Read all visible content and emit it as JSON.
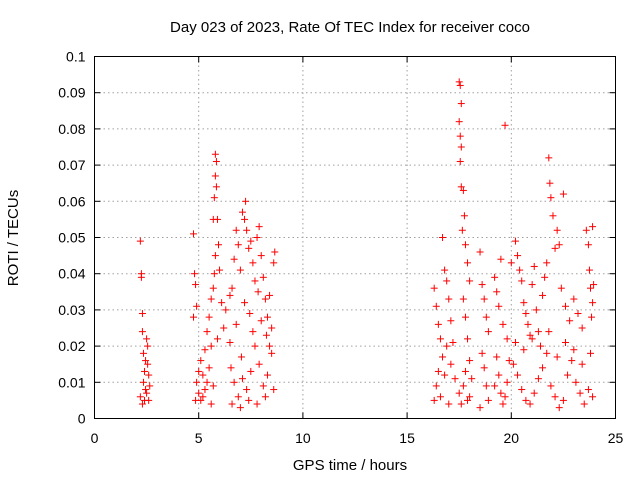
{
  "chart_data": {
    "type": "scatter",
    "title": "Day 023 of 2023, Rate Of TEC Index for receiver coco",
    "xlabel": "GPS time / hours",
    "ylabel": "ROTI / TECUs",
    "xlim": [
      0,
      25
    ],
    "ylim": [
      0,
      0.1
    ],
    "x_ticks": [
      "0",
      "5",
      "10",
      "15",
      "20",
      "25"
    ],
    "y_ticks": [
      "0",
      "0.01",
      "0.02",
      "0.03",
      "0.04",
      "0.05",
      "0.06",
      "0.07",
      "0.08",
      "0.09",
      "0.1"
    ],
    "grid": true,
    "marker": "+",
    "color": "#ff0000",
    "series": [
      {
        "points": [
          [
            2.2,
            0.049
          ],
          [
            2.25,
            0.04
          ],
          [
            2.3,
            0.029
          ],
          [
            2.3,
            0.024
          ],
          [
            2.35,
            0.018
          ],
          [
            2.4,
            0.013
          ],
          [
            2.45,
            0.016
          ],
          [
            2.5,
            0.022
          ],
          [
            2.55,
            0.02
          ],
          [
            2.6,
            0.012
          ],
          [
            2.65,
            0.009
          ],
          [
            2.2,
            0.006
          ],
          [
            2.3,
            0.004
          ],
          [
            2.4,
            0.005
          ],
          [
            2.5,
            0.007
          ],
          [
            2.6,
            0.005
          ],
          [
            2.25,
            0.039
          ],
          [
            2.35,
            0.01
          ],
          [
            2.45,
            0.008
          ],
          [
            2.55,
            0.015
          ],
          [
            4.75,
            0.051
          ],
          [
            4.8,
            0.04
          ],
          [
            4.85,
            0.037
          ],
          [
            4.75,
            0.028
          ],
          [
            4.9,
            0.031
          ],
          [
            5.0,
            0.013
          ],
          [
            5.1,
            0.016
          ],
          [
            5.2,
            0.012
          ],
          [
            5.3,
            0.019
          ],
          [
            5.4,
            0.024
          ],
          [
            5.5,
            0.028
          ],
          [
            5.6,
            0.033
          ],
          [
            5.7,
            0.036
          ],
          [
            5.75,
            0.04
          ],
          [
            5.8,
            0.045
          ],
          [
            5.7,
            0.055
          ],
          [
            5.75,
            0.061
          ],
          [
            5.85,
            0.064
          ],
          [
            5.8,
            0.067
          ],
          [
            5.8,
            0.073
          ],
          [
            5.85,
            0.071
          ],
          [
            5.9,
            0.055
          ],
          [
            5.95,
            0.048
          ],
          [
            6.0,
            0.041
          ],
          [
            6.1,
            0.032
          ],
          [
            5.9,
            0.022
          ],
          [
            5.6,
            0.02
          ],
          [
            5.5,
            0.014
          ],
          [
            5.4,
            0.01
          ],
          [
            5.3,
            0.008
          ],
          [
            5.2,
            0.006
          ],
          [
            5.1,
            0.005
          ],
          [
            5.0,
            0.007
          ],
          [
            4.9,
            0.01
          ],
          [
            4.85,
            0.005
          ],
          [
            5.6,
            0.004
          ],
          [
            5.7,
            0.009
          ],
          [
            6.2,
            0.025
          ],
          [
            6.3,
            0.03
          ],
          [
            6.5,
            0.034
          ],
          [
            6.5,
            0.021
          ],
          [
            6.6,
            0.036
          ],
          [
            6.7,
            0.044
          ],
          [
            6.8,
            0.052
          ],
          [
            6.9,
            0.048
          ],
          [
            7.0,
            0.041
          ],
          [
            7.1,
            0.057
          ],
          [
            7.2,
            0.055
          ],
          [
            7.25,
            0.06
          ],
          [
            7.3,
            0.052
          ],
          [
            7.4,
            0.047
          ],
          [
            7.5,
            0.049
          ],
          [
            7.6,
            0.043
          ],
          [
            7.7,
            0.038
          ],
          [
            7.8,
            0.05
          ],
          [
            7.9,
            0.053
          ],
          [
            8.0,
            0.045
          ],
          [
            8.1,
            0.039
          ],
          [
            8.2,
            0.033
          ],
          [
            8.3,
            0.028
          ],
          [
            8.4,
            0.034
          ],
          [
            8.5,
            0.025
          ],
          [
            8.6,
            0.043
          ],
          [
            8.65,
            0.046
          ],
          [
            8.5,
            0.018
          ],
          [
            8.3,
            0.012
          ],
          [
            8.1,
            0.009
          ],
          [
            7.9,
            0.015
          ],
          [
            7.7,
            0.02
          ],
          [
            7.5,
            0.013
          ],
          [
            7.3,
            0.008
          ],
          [
            7.1,
            0.011
          ],
          [
            6.9,
            0.006
          ],
          [
            6.7,
            0.01
          ],
          [
            6.6,
            0.004
          ],
          [
            7.0,
            0.003
          ],
          [
            7.4,
            0.005
          ],
          [
            7.8,
            0.004
          ],
          [
            8.2,
            0.006
          ],
          [
            8.6,
            0.008
          ],
          [
            6.8,
            0.026
          ],
          [
            7.2,
            0.032
          ],
          [
            7.6,
            0.024
          ],
          [
            8.0,
            0.027
          ],
          [
            8.4,
            0.02
          ],
          [
            7.05,
            0.017
          ],
          [
            7.45,
            0.029
          ],
          [
            7.85,
            0.035
          ],
          [
            8.25,
            0.023
          ],
          [
            6.55,
            0.014
          ],
          [
            16.3,
            0.036
          ],
          [
            16.4,
            0.031
          ],
          [
            16.5,
            0.026
          ],
          [
            16.6,
            0.022
          ],
          [
            16.7,
            0.05
          ],
          [
            16.8,
            0.041
          ],
          [
            16.9,
            0.038
          ],
          [
            17.0,
            0.033
          ],
          [
            17.1,
            0.027
          ],
          [
            17.2,
            0.021
          ],
          [
            16.4,
            0.009
          ],
          [
            16.6,
            0.006
          ],
          [
            16.8,
            0.012
          ],
          [
            17.0,
            0.004
          ],
          [
            16.3,
            0.005
          ],
          [
            16.5,
            0.013
          ],
          [
            16.7,
            0.017
          ],
          [
            16.9,
            0.02
          ],
          [
            17.1,
            0.015
          ],
          [
            17.3,
            0.011
          ],
          [
            17.5,
            0.093
          ],
          [
            17.55,
            0.092
          ],
          [
            17.6,
            0.087
          ],
          [
            17.5,
            0.082
          ],
          [
            17.55,
            0.078
          ],
          [
            17.6,
            0.075
          ],
          [
            17.55,
            0.071
          ],
          [
            17.6,
            0.064
          ],
          [
            17.7,
            0.063
          ],
          [
            17.75,
            0.056
          ],
          [
            17.65,
            0.052
          ],
          [
            17.8,
            0.048
          ],
          [
            17.9,
            0.043
          ],
          [
            18.0,
            0.038
          ],
          [
            17.7,
            0.033
          ],
          [
            17.8,
            0.028
          ],
          [
            17.9,
            0.022
          ],
          [
            18.0,
            0.016
          ],
          [
            18.1,
            0.011
          ],
          [
            17.5,
            0.007
          ],
          [
            17.6,
            0.004
          ],
          [
            17.7,
            0.009
          ],
          [
            17.8,
            0.013
          ],
          [
            17.9,
            0.005
          ],
          [
            18.0,
            0.006
          ],
          [
            18.5,
            0.046
          ],
          [
            18.6,
            0.037
          ],
          [
            18.7,
            0.033
          ],
          [
            18.8,
            0.028
          ],
          [
            18.9,
            0.024
          ],
          [
            18.6,
            0.018
          ],
          [
            18.7,
            0.014
          ],
          [
            18.8,
            0.009
          ],
          [
            18.9,
            0.005
          ],
          [
            18.5,
            0.003
          ],
          [
            19.2,
            0.039
          ],
          [
            19.3,
            0.035
          ],
          [
            19.4,
            0.031
          ],
          [
            19.5,
            0.044
          ],
          [
            19.6,
            0.026
          ],
          [
            19.7,
            0.081
          ],
          [
            19.8,
            0.022
          ],
          [
            19.3,
            0.017
          ],
          [
            19.4,
            0.012
          ],
          [
            19.5,
            0.007
          ],
          [
            19.6,
            0.004
          ],
          [
            19.7,
            0.006
          ],
          [
            19.8,
            0.01
          ],
          [
            19.9,
            0.016
          ],
          [
            19.2,
            0.009
          ],
          [
            20.0,
            0.043
          ],
          [
            20.2,
            0.049
          ],
          [
            20.3,
            0.045
          ],
          [
            20.4,
            0.041
          ],
          [
            20.5,
            0.038
          ],
          [
            20.6,
            0.032
          ],
          [
            20.7,
            0.029
          ],
          [
            20.8,
            0.026
          ],
          [
            20.9,
            0.023
          ],
          [
            21.0,
            0.037
          ],
          [
            21.1,
            0.042
          ],
          [
            21.2,
            0.03
          ],
          [
            21.3,
            0.024
          ],
          [
            21.5,
            0.034
          ],
          [
            21.6,
            0.039
          ],
          [
            21.7,
            0.043
          ],
          [
            21.8,
            0.072
          ],
          [
            21.85,
            0.065
          ],
          [
            21.9,
            0.061
          ],
          [
            22.0,
            0.056
          ],
          [
            22.1,
            0.047
          ],
          [
            22.2,
            0.052
          ],
          [
            22.3,
            0.048
          ],
          [
            22.5,
            0.062
          ],
          [
            22.4,
            0.036
          ],
          [
            22.6,
            0.031
          ],
          [
            22.8,
            0.027
          ],
          [
            23.0,
            0.033
          ],
          [
            23.2,
            0.029
          ],
          [
            23.4,
            0.025
          ],
          [
            23.6,
            0.052
          ],
          [
            23.7,
            0.048
          ],
          [
            23.75,
            0.041
          ],
          [
            23.8,
            0.036
          ],
          [
            23.9,
            0.032
          ],
          [
            23.85,
            0.028
          ],
          [
            23.9,
            0.053
          ],
          [
            23.95,
            0.037
          ],
          [
            20.1,
            0.015
          ],
          [
            20.3,
            0.012
          ],
          [
            20.5,
            0.008
          ],
          [
            20.7,
            0.005
          ],
          [
            20.9,
            0.004
          ],
          [
            21.1,
            0.007
          ],
          [
            21.3,
            0.011
          ],
          [
            21.5,
            0.014
          ],
          [
            21.7,
            0.018
          ],
          [
            21.9,
            0.009
          ],
          [
            22.1,
            0.006
          ],
          [
            22.3,
            0.003
          ],
          [
            22.5,
            0.005
          ],
          [
            22.7,
            0.012
          ],
          [
            22.9,
            0.016
          ],
          [
            23.1,
            0.01
          ],
          [
            23.3,
            0.007
          ],
          [
            23.5,
            0.004
          ],
          [
            23.7,
            0.008
          ],
          [
            23.9,
            0.006
          ],
          [
            20.2,
            0.021
          ],
          [
            20.6,
            0.019
          ],
          [
            21.0,
            0.022
          ],
          [
            21.4,
            0.02
          ],
          [
            21.8,
            0.024
          ],
          [
            22.2,
            0.017
          ],
          [
            22.6,
            0.021
          ],
          [
            23.0,
            0.019
          ],
          [
            23.4,
            0.015
          ],
          [
            23.8,
            0.018
          ]
        ]
      }
    ]
  }
}
